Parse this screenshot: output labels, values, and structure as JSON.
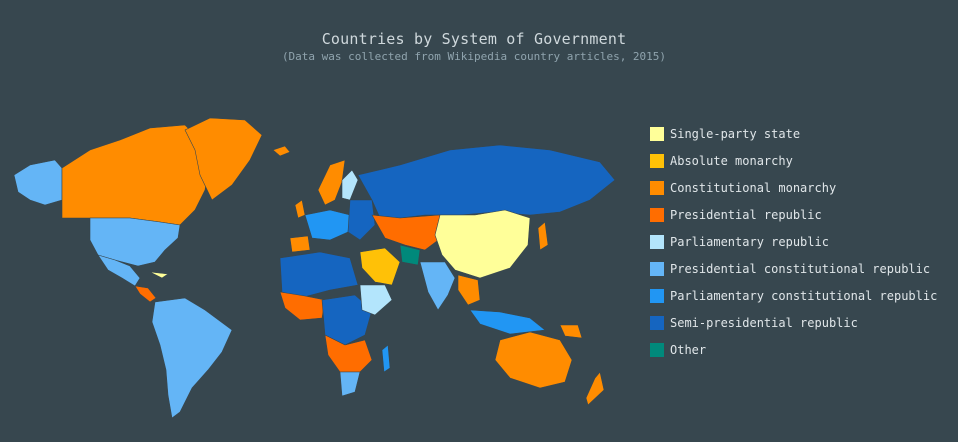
{
  "title": "Countries by System of Government",
  "subtitle": "(Data was collected from Wikipedia country articles, 2015)",
  "legend": [
    {
      "label": "Single-party state",
      "color": "#ffff99"
    },
    {
      "label": "Absolute monarchy",
      "color": "#ffc107"
    },
    {
      "label": "Constitutional monarchy",
      "color": "#ff8c00"
    },
    {
      "label": "Presidential republic",
      "color": "#ff6d00"
    },
    {
      "label": "Parliamentary republic",
      "color": "#b3e5fc"
    },
    {
      "label": "Presidential constitutional republic",
      "color": "#64b5f6"
    },
    {
      "label": "Parliamentary constitutional republic",
      "color": "#2196f3"
    },
    {
      "label": "Semi-presidential republic",
      "color": "#1565c0"
    },
    {
      "label": "Other",
      "color": "#00897b"
    }
  ]
}
